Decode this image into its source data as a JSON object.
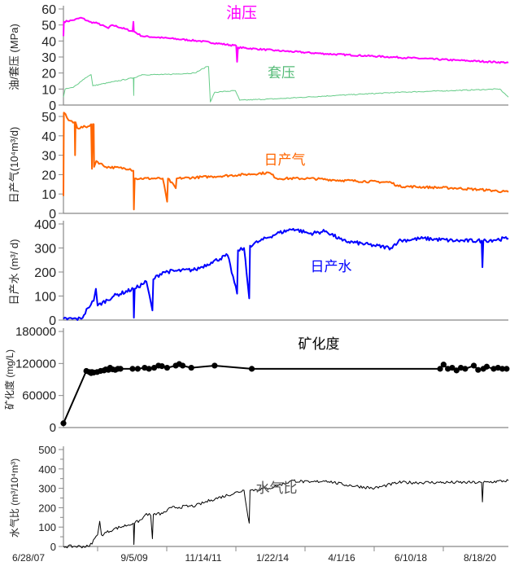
{
  "chart_data": {
    "type": "line",
    "x_unit": "days since 6/28/07",
    "x_range": [
      0,
      5150
    ],
    "x_tick_labels": [
      "6/28/07",
      "9/5/09",
      "11/14/11",
      "1/22/14",
      "4/1/16",
      "6/10/18",
      "8/18/20"
    ],
    "panels": [
      {
        "id": "pressure",
        "ylabel": "油/套压 (MPa)",
        "ylim": [
          0,
          60
        ],
        "yticks": [
          0,
          10,
          20,
          30,
          40,
          50,
          60
        ],
        "series": [
          {
            "name": "油压",
            "color": "#ff00ff",
            "width": 2,
            "noise": 0.5,
            "points": [
              [
                0,
                43
              ],
              [
                5,
                52
              ],
              [
                110,
                53
              ],
              [
                207,
                54.5
              ],
              [
                300,
                52
              ],
              [
                395,
                51
              ],
              [
                520,
                48
              ],
              [
                565,
                50
              ],
              [
                800,
                46
              ],
              [
                810,
                52
              ],
              [
                815,
                46
              ],
              [
                910,
                43
              ],
              [
                1150,
                42
              ],
              [
                1570,
                40
              ],
              [
                2000,
                37
              ],
              [
                2010,
                27
              ],
              [
                2020,
                36
              ],
              [
                2470,
                34
              ],
              [
                3030,
                32
              ],
              [
                3790,
                30
              ],
              [
                4540,
                28
              ],
              [
                5150,
                26.5
              ]
            ]
          },
          {
            "name": "套压",
            "color": "#66cc88",
            "width": 1,
            "noise": 0.3,
            "points": [
              [
                0,
                5
              ],
              [
                20,
                10
              ],
              [
                113,
                11
              ],
              [
                254,
                17
              ],
              [
                320,
                19
              ],
              [
                340,
                12
              ],
              [
                810,
                17
              ],
              [
                813,
                6
              ],
              [
                816,
                17
              ],
              [
                910,
                19
              ],
              [
                1150,
                19
              ],
              [
                1520,
                20
              ],
              [
                1660,
                24
              ],
              [
                1680,
                24
              ],
              [
                1700,
                2
              ],
              [
                1750,
                8
              ],
              [
                1990,
                9
              ],
              [
                2040,
                3
              ],
              [
                2500,
                4
              ],
              [
                3150,
                6
              ],
              [
                3900,
                8
              ],
              [
                4480,
                9
              ],
              [
                5050,
                10
              ],
              [
                5150,
                5
              ]
            ]
          }
        ]
      },
      {
        "id": "gas",
        "ylabel": "日产气(10⁴m³/d)",
        "ylim": [
          0,
          50
        ],
        "yticks": [
          0,
          10,
          20,
          30,
          40,
          50
        ],
        "series": [
          {
            "name": "日产气",
            "color": "#ff6600",
            "width": 2,
            "noise": 0.6,
            "points": [
              [
                0,
                9
              ],
              [
                5,
                52
              ],
              [
                60,
                48
              ],
              [
                130,
                47
              ],
              [
                135,
                30
              ],
              [
                140,
                47
              ],
              [
                160,
                44
              ],
              [
                300,
                45
              ],
              [
                320,
                46
              ],
              [
                330,
                23
              ],
              [
                340,
                46
              ],
              [
                350,
                46
              ],
              [
                355,
                24
              ],
              [
                380,
                27
              ],
              [
                490,
                24
              ],
              [
                770,
                23
              ],
              [
                810,
                22
              ],
              [
                815,
                2
              ],
              [
                825,
                18
              ],
              [
                1150,
                18
              ],
              [
                1200,
                6
              ],
              [
                1210,
                18
              ],
              [
                1300,
                13
              ],
              [
                1310,
                18
              ],
              [
                1720,
                19
              ],
              [
                2090,
                20
              ],
              [
                2380,
                21
              ],
              [
                2470,
                18
              ],
              [
                2850,
                18
              ],
              [
                3230,
                17
              ],
              [
                3790,
                16
              ],
              [
                3880,
                14
              ],
              [
                4540,
                13
              ],
              [
                4910,
                12
              ],
              [
                5150,
                11
              ]
            ]
          }
        ]
      },
      {
        "id": "water",
        "ylabel": "日产水 (m³/ d)",
        "ylim": [
          0,
          400
        ],
        "yticks": [
          0,
          100,
          200,
          300,
          400
        ],
        "series": [
          {
            "name": "日产水",
            "color": "#0000ff",
            "width": 2,
            "noise": 8,
            "points": [
              [
                0,
                5
              ],
              [
                207,
                5
              ],
              [
                282,
                50
              ],
              [
                350,
                80
              ],
              [
                376,
                130
              ],
              [
                395,
                60
              ],
              [
                583,
                100
              ],
              [
                810,
                130
              ],
              [
                815,
                10
              ],
              [
                825,
                130
              ],
              [
                960,
                160
              ],
              [
                1030,
                40
              ],
              [
                1040,
                170
              ],
              [
                1150,
                200
              ],
              [
                1530,
                210
              ],
              [
                1710,
                240
              ],
              [
                1900,
                270
              ],
              [
                2010,
                110
              ],
              [
                2020,
                290
              ],
              [
                2090,
                300
              ],
              [
                2150,
                90
              ],
              [
                2160,
                310
              ],
              [
                2280,
                330
              ],
              [
                2470,
                360
              ],
              [
                2660,
                380
              ],
              [
                2850,
                360
              ],
              [
                3040,
                370
              ],
              [
                3230,
                330
              ],
              [
                3600,
                310
              ],
              [
                3790,
                300
              ],
              [
                3880,
                330
              ],
              [
                4160,
                340
              ],
              [
                4540,
                330
              ],
              [
                4840,
                330
              ],
              [
                4850,
                220
              ],
              [
                4860,
                330
              ],
              [
                5150,
                340
              ]
            ]
          }
        ]
      },
      {
        "id": "salinity",
        "ylabel": "矿化度 (mg/L)",
        "ylim": [
          0,
          180000
        ],
        "yticks": [
          0,
          60000,
          120000,
          180000
        ],
        "series": [
          {
            "name": "矿化度",
            "color": "#000000",
            "width": 2,
            "markers": true,
            "points": [
              [
                0,
                8000
              ],
              [
                265,
                106000
              ],
              [
                300,
                104000
              ],
              [
                320,
                102000
              ],
              [
                330,
                104000
              ],
              [
                350,
                103000
              ],
              [
                390,
                104000
              ],
              [
                430,
                106000
              ],
              [
                470,
                107000
              ],
              [
                490,
                109000
              ],
              [
                520,
                108000
              ],
              [
                540,
                112000
              ],
              [
                570,
                109000
              ],
              [
                600,
                108000
              ],
              [
                630,
                110000
              ],
              [
                660,
                110000
              ],
              [
                800,
                110000
              ],
              [
                860,
                110000
              ],
              [
                940,
                112000
              ],
              [
                990,
                110000
              ],
              [
                1050,
                112000
              ],
              [
                1100,
                116000
              ],
              [
                1140,
                115000
              ],
              [
                1200,
                112000
              ],
              [
                1300,
                116000
              ],
              [
                1340,
                119000
              ],
              [
                1380,
                116000
              ],
              [
                1480,
                112000
              ],
              [
                1750,
                116000
              ],
              [
                2180,
                110000
              ],
              [
                4360,
                110000
              ],
              [
                4400,
                118000
              ],
              [
                4450,
                110000
              ],
              [
                4500,
                112000
              ],
              [
                4550,
                107000
              ],
              [
                4600,
                112000
              ],
              [
                4650,
                110000
              ],
              [
                4750,
                116000
              ],
              [
                4800,
                108000
              ],
              [
                4860,
                110000
              ],
              [
                4900,
                114000
              ],
              [
                4980,
                110000
              ],
              [
                5030,
                112000
              ],
              [
                5080,
                110000
              ],
              [
                5130,
                110000
              ]
            ]
          }
        ]
      },
      {
        "id": "wgr",
        "ylabel": "水气比 (m³/10⁴m³)",
        "ylim": [
          0,
          500
        ],
        "yticks": [
          0,
          100,
          200,
          300,
          400,
          500
        ],
        "series": [
          {
            "name": "水气比",
            "color": "#000000",
            "width": 1,
            "noise": 8,
            "points": [
              [
                0,
                0
              ],
              [
                300,
                0
              ],
              [
                395,
                60
              ],
              [
                420,
                130
              ],
              [
                440,
                60
              ],
              [
                583,
                90
              ],
              [
                810,
                120
              ],
              [
                815,
                10
              ],
              [
                825,
                120
              ],
              [
                910,
                140
              ],
              [
                960,
                170
              ],
              [
                1010,
                160
              ],
              [
                1030,
                40
              ],
              [
                1040,
                165
              ],
              [
                1150,
                170
              ],
              [
                1250,
                200
              ],
              [
                1530,
                210
              ],
              [
                1710,
                240
              ],
              [
                2090,
                290
              ],
              [
                2150,
                120
              ],
              [
                2160,
                290
              ],
              [
                2380,
                300
              ],
              [
                2660,
                340
              ],
              [
                2850,
                330
              ],
              [
                3040,
                340
              ],
              [
                3230,
                320
              ],
              [
                3600,
                300
              ],
              [
                3880,
                330
              ],
              [
                4350,
                330
              ],
              [
                4840,
                330
              ],
              [
                4850,
                230
              ],
              [
                4860,
                330
              ],
              [
                5150,
                340
              ]
            ]
          }
        ]
      }
    ],
    "annotations": [
      "油压",
      "套压",
      "日产气",
      "日产水",
      "矿化度",
      "水气比"
    ]
  }
}
